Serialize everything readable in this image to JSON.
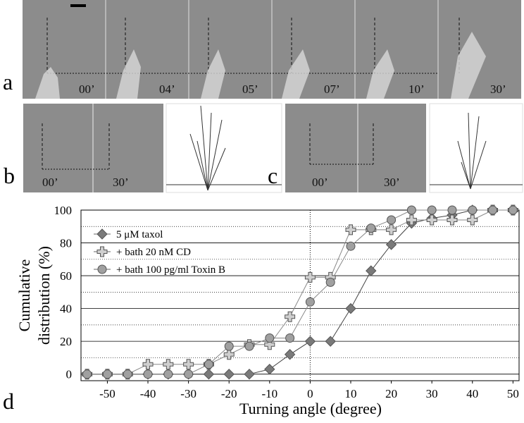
{
  "panels": {
    "a": {
      "label": "a",
      "times": [
        "00’",
        "04’",
        "05’",
        "07’",
        "10’",
        "30’"
      ]
    },
    "b": {
      "label": "b",
      "times": [
        "00’",
        "30’"
      ]
    },
    "c": {
      "label": "c",
      "times": [
        "00’",
        "30’"
      ]
    },
    "d": {
      "label": "d"
    }
  },
  "chart_data": {
    "type": "line",
    "x_label": "Turning angle (degree)",
    "y_label": [
      "Cumulative",
      "distribution (%)"
    ],
    "x": [
      -55,
      -50,
      -45,
      -40,
      -35,
      -30,
      -25,
      -20,
      -15,
      -10,
      -5,
      0,
      5,
      10,
      15,
      20,
      25,
      30,
      35,
      40,
      45,
      50
    ],
    "series": [
      {
        "name": "5 μM taxol",
        "marker": "diamond",
        "color": "#7a7a7a",
        "values": [
          0,
          0,
          0,
          0,
          0,
          0,
          0,
          0,
          0,
          3,
          12,
          20,
          20,
          40,
          63,
          79,
          92,
          95,
          97,
          100,
          100,
          100
        ]
      },
      {
        "name": "+ bath 20 nM CD",
        "marker": "cross",
        "color": "#cfcfcf",
        "values": [
          0,
          0,
          0,
          6,
          6,
          6,
          6,
          12,
          18,
          18,
          35,
          59,
          59,
          88,
          88,
          88,
          94,
          94,
          94,
          94,
          100,
          100
        ]
      },
      {
        "name": "+ bath 100 pg/ml Toxin B",
        "marker": "circle",
        "color": "#a0a0a0",
        "values": [
          0,
          0,
          0,
          0,
          0,
          0,
          6,
          17,
          17,
          22,
          22,
          44,
          56,
          78,
          89,
          94,
          100,
          100,
          100,
          100,
          100,
          100
        ]
      }
    ],
    "xlim": [
      -56.5,
      51.5
    ],
    "ylim": [
      -4,
      100
    ],
    "xticks": [
      -50,
      -40,
      -30,
      -20,
      -10,
      0,
      10,
      20,
      30,
      40,
      50
    ],
    "yticks": [
      0,
      20,
      40,
      60,
      80,
      100
    ],
    "minor_yticks": [
      10,
      30,
      50,
      70,
      90
    ],
    "grid": true,
    "zero_line": 0,
    "legend": "upper left"
  }
}
